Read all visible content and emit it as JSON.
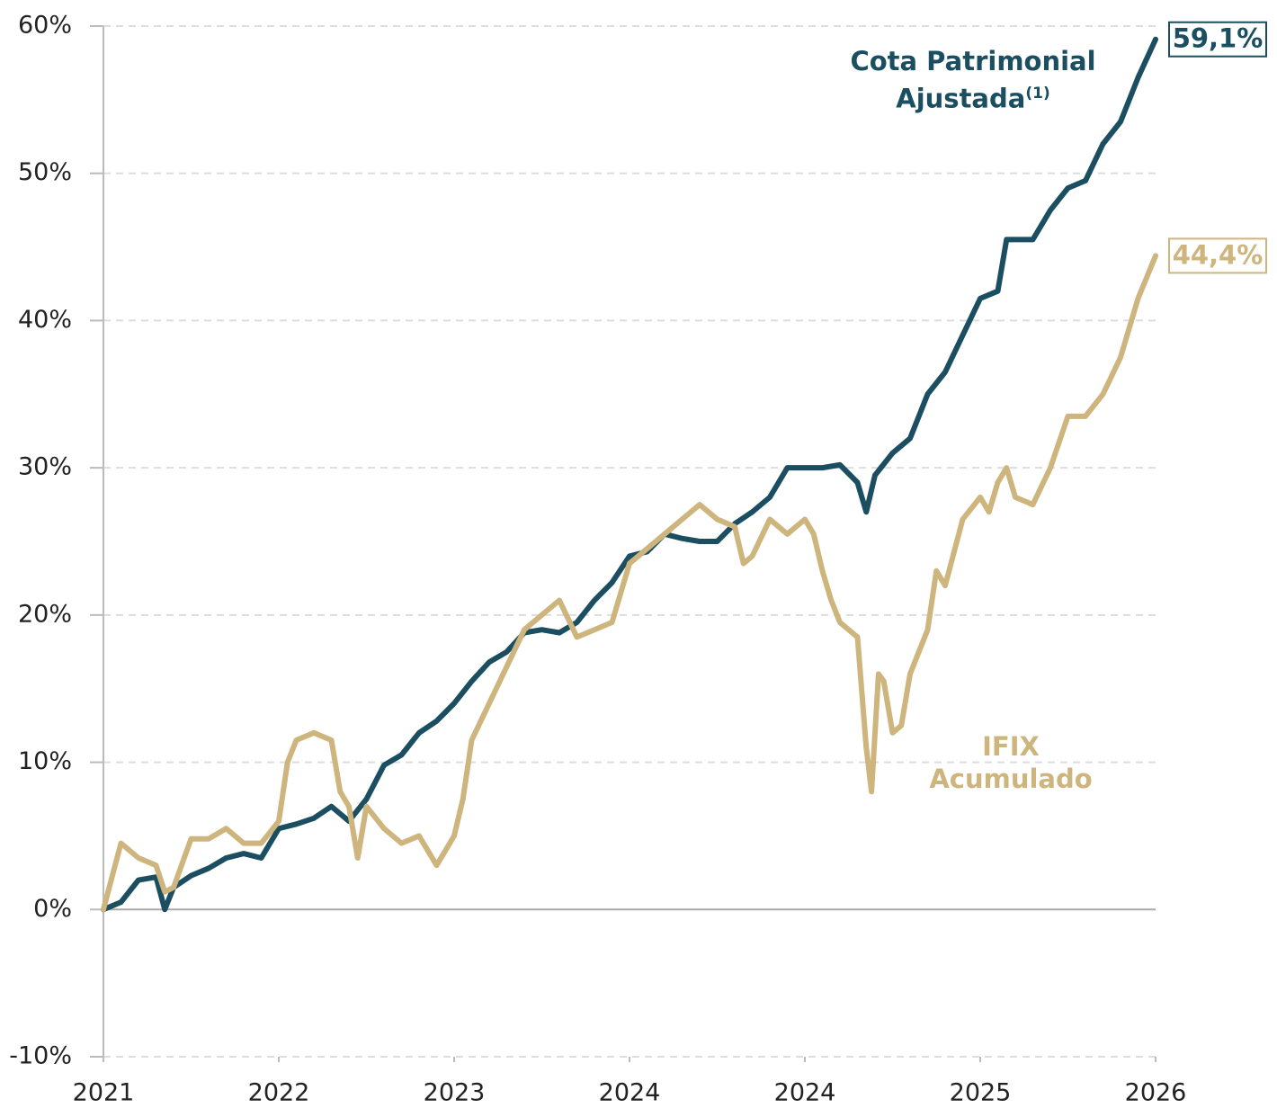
{
  "chart_data": {
    "type": "line",
    "xlim": [
      0,
      6
    ],
    "xticks": [
      {
        "value": 0,
        "label": "2021"
      },
      {
        "value": 1,
        "label": "2022"
      },
      {
        "value": 2,
        "label": "2023"
      },
      {
        "value": 3,
        "label": "2024"
      },
      {
        "value": 4,
        "label": "2024"
      },
      {
        "value": 5,
        "label": "2025"
      },
      {
        "value": 6,
        "label": "2026"
      }
    ],
    "ylim": [
      -10,
      60
    ],
    "yticks": [
      {
        "value": 60,
        "label": "60%"
      },
      {
        "value": 50,
        "label": "50%"
      },
      {
        "value": 40,
        "label": "40%"
      },
      {
        "value": 30,
        "label": "30%"
      },
      {
        "value": 20,
        "label": "20%"
      },
      {
        "value": 10,
        "label": "10%"
      },
      {
        "value": 0,
        "label": "0%"
      },
      {
        "value": -10,
        "label": "-10%"
      }
    ],
    "grid": true,
    "series": [
      {
        "name": "Cota Patrimonial Ajustada",
        "name_note": "(1)",
        "color": "#1a4e60",
        "end_label": "59,1%",
        "x": [
          0,
          0.1,
          0.2,
          0.3,
          0.35,
          0.4,
          0.5,
          0.6,
          0.7,
          0.8,
          0.9,
          1.0,
          1.1,
          1.2,
          1.3,
          1.4,
          1.5,
          1.6,
          1.7,
          1.8,
          1.9,
          2.0,
          2.1,
          2.2,
          2.3,
          2.4,
          2.5,
          2.6,
          2.7,
          2.8,
          2.9,
          3.0,
          3.1,
          3.2,
          3.3,
          3.4,
          3.5,
          3.6,
          3.7,
          3.8,
          3.9,
          4.0,
          4.1,
          4.2,
          4.3,
          4.35,
          4.4,
          4.5,
          4.6,
          4.7,
          4.8,
          4.9,
          5.0,
          5.1,
          5.15,
          5.2,
          5.3,
          5.4,
          5.5,
          5.6,
          5.7,
          5.8,
          5.9,
          6.0
        ],
        "values": [
          0,
          0.5,
          2,
          2.2,
          0,
          1.5,
          2.3,
          2.8,
          3.5,
          3.8,
          3.5,
          5.5,
          5.8,
          6.2,
          7,
          6,
          7.5,
          9.8,
          10.5,
          12,
          12.8,
          14,
          15.5,
          16.8,
          17.5,
          18.8,
          19,
          18.8,
          19.5,
          21,
          22.2,
          24,
          24.3,
          25.5,
          25.2,
          25,
          25,
          26.2,
          27,
          28,
          30,
          30,
          30,
          30.2,
          29,
          27,
          29.5,
          31,
          32,
          35,
          36.5,
          39,
          41.5,
          42,
          45.5,
          45.5,
          45.5,
          47.5,
          49,
          49.5,
          52,
          53.5,
          56.5,
          59.1
        ]
      },
      {
        "name": "IFIX Acumulado",
        "color": "#cdb57d",
        "end_label": "44,4%",
        "x": [
          0,
          0.1,
          0.2,
          0.3,
          0.35,
          0.4,
          0.5,
          0.6,
          0.7,
          0.8,
          0.9,
          1.0,
          1.05,
          1.1,
          1.2,
          1.3,
          1.35,
          1.4,
          1.45,
          1.5,
          1.6,
          1.7,
          1.8,
          1.9,
          2.0,
          2.05,
          2.1,
          2.2,
          2.3,
          2.4,
          2.5,
          2.6,
          2.7,
          2.8,
          2.9,
          3.0,
          3.1,
          3.2,
          3.3,
          3.4,
          3.5,
          3.6,
          3.65,
          3.7,
          3.8,
          3.9,
          4.0,
          4.05,
          4.1,
          4.15,
          4.2,
          4.3,
          4.35,
          4.38,
          4.42,
          4.45,
          4.5,
          4.55,
          4.6,
          4.7,
          4.75,
          4.8,
          4.9,
          5.0,
          5.05,
          5.1,
          5.15,
          5.2,
          5.3,
          5.4,
          5.5,
          5.6,
          5.7,
          5.8,
          5.9,
          6.0
        ],
        "values": [
          0,
          4.5,
          3.5,
          3,
          1.2,
          1.5,
          4.8,
          4.8,
          5.5,
          4.5,
          4.5,
          6,
          10,
          11.5,
          12,
          11.5,
          8,
          7,
          3.5,
          7,
          5.5,
          4.5,
          5,
          3,
          5,
          7.5,
          11.5,
          14,
          16.5,
          19,
          20,
          21,
          18.5,
          19,
          19.5,
          23.5,
          24.5,
          25.5,
          26.5,
          27.5,
          26.5,
          26,
          23.5,
          24,
          26.5,
          25.5,
          26.5,
          25.5,
          23,
          21,
          19.5,
          18.5,
          11,
          8,
          16,
          15.5,
          12,
          12.5,
          16,
          19,
          23,
          22,
          26.5,
          28,
          27,
          29,
          30,
          28,
          27.5,
          30,
          33.5,
          33.5,
          35,
          37.5,
          41.5,
          44.4
        ]
      }
    ]
  }
}
